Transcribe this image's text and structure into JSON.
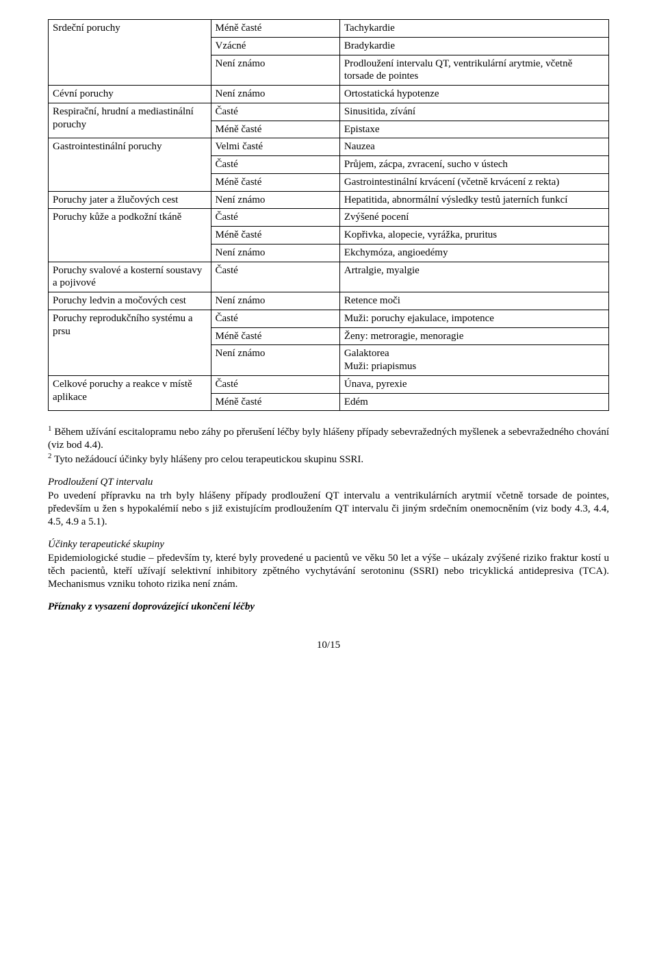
{
  "table": {
    "rows": [
      {
        "c1": "",
        "c1_rs": 0,
        "c2": "Méně časté",
        "c3": "Tachykardie"
      },
      {
        "c1": "Srdeční poruchy",
        "c1_rs": 3,
        "c2": "Vzácné",
        "c3": "Bradykardie"
      },
      {
        "c1": "",
        "c1_rs": 0,
        "c2": "Není známo",
        "c3": "Prodloužení intervalu QT, ventrikulární arytmie, včetně torsade de pointes"
      },
      {
        "c1": "Cévní poruchy",
        "c1_rs": 1,
        "c2": "Není známo",
        "c3": "Ortostatická hypotenze"
      },
      {
        "c1": "Respirační, hrudní a mediastinální poruchy",
        "c1_rs": 2,
        "c2": "Časté",
        "c3": "Sinusitida, zívání"
      },
      {
        "c1": "",
        "c1_rs": 0,
        "c2": "Méně časté",
        "c3": "Epistaxe"
      },
      {
        "c1": "Gastrointestinální poruchy",
        "c1_rs": 3,
        "c2": "Velmi časté",
        "c3": "Nauzea"
      },
      {
        "c1": "",
        "c1_rs": 0,
        "c2": "Časté",
        "c3": "Průjem, zácpa, zvracení, sucho v ústech"
      },
      {
        "c1": "",
        "c1_rs": 0,
        "c2": "Méně časté",
        "c3": "Gastrointestinální krvácení (včetně krvácení z rekta)"
      },
      {
        "c1": "Poruchy jater a žlučových cest",
        "c1_rs": 1,
        "c2": "Není známo",
        "c3": "Hepatitida, abnormální výsledky testů jaterních funkcí"
      },
      {
        "c1": "Poruchy kůže a podkožní tkáně",
        "c1_rs": 3,
        "c2": "Časté",
        "c3": "Zvýšené pocení"
      },
      {
        "c1": "",
        "c1_rs": 0,
        "c2": "Méně časté",
        "c3": "Kopřivka, alopecie, vyrážka, pruritus"
      },
      {
        "c1": "",
        "c1_rs": 0,
        "c2": "Není známo",
        "c3": "Ekchymóza, angioedémy"
      },
      {
        "c1": "Poruchy svalové a kosterní soustavy a pojivové",
        "c1_rs": 1,
        "c2": "Časté",
        "c3": "Artralgie, myalgie"
      },
      {
        "c1": "Poruchy ledvin a močových cest",
        "c1_rs": 1,
        "c2": "Není známo",
        "c3": "Retence moči"
      },
      {
        "c1": "Poruchy reprodukčního systému a prsu",
        "c1_rs": 3,
        "c2": "Časté",
        "c3": "Muži: poruchy ejakulace, impotence"
      },
      {
        "c1": "",
        "c1_rs": 0,
        "c2": "Méně časté",
        "c3": "Ženy: metroragie, menoragie"
      },
      {
        "c1": "",
        "c1_rs": 0,
        "c2": "Není známo",
        "c3": "Galaktorea\nMuži: priapismus"
      },
      {
        "c1": "Celkové poruchy a reakce v místě aplikace",
        "c1_rs": 2,
        "c2": "Časté",
        "c3": "Únava, pyrexie"
      },
      {
        "c1": "",
        "c1_rs": 0,
        "c2": "Méně časté",
        "c3": "Edém"
      }
    ]
  },
  "footnotes": {
    "sup1": "1",
    "fn1": " Během užívání escitalopramu nebo záhy po přerušení léčby byly hlášeny případy sebevražedných myšlenek a sebevražedného chování (viz bod 4.4).",
    "sup2": "2",
    "fn2": " Tyto nežádoucí účinky byly hlášeny pro celou terapeutickou skupinu SSRI."
  },
  "sections": {
    "qt_heading": "Prodloužení QT intervalu",
    "qt_body": "Po uvedení přípravku na trh byly hlášeny případy prodloužení QT intervalu a ventrikulárních arytmií včetně torsade de pointes, především u žen s hypokalémií nebo s již existujícím prodloužením QT intervalu či jiným srdečním onemocněním (viz body 4.3, 4.4, 4.5, 4.9 a 5.1).",
    "group_heading": "Účinky terapeutické skupiny",
    "group_body": "Epidemiologické studie – především ty, které byly provedené u pacientů ve věku 50 let a výše – ukázaly zvýšené riziko fraktur kostí u těch pacientů, kteří užívají selektivní inhibitory zpětného vychytávání serotoninu (SSRI) nebo tricyklická antidepresiva (TCA). Mechanismus vzniku tohoto rizika není znám.",
    "withdrawal_heading": "Příznaky z vysazení doprovázející ukončení léčby"
  },
  "footer": "10/15"
}
